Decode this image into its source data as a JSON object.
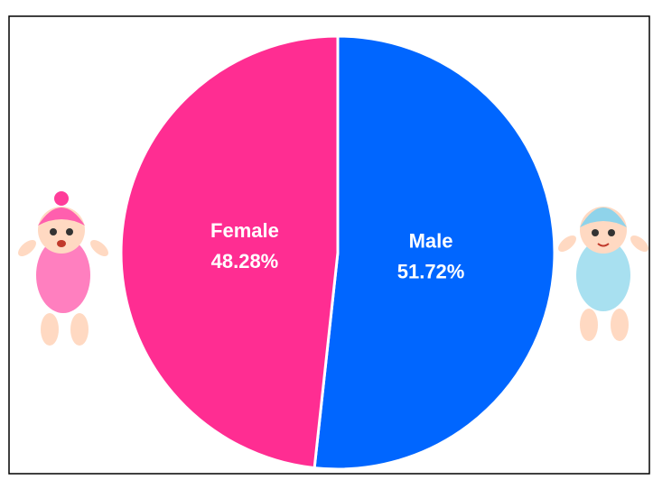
{
  "chart_data": {
    "type": "pie",
    "categories": [
      "Male",
      "Female"
    ],
    "values": [
      51.72,
      48.28
    ],
    "value_labels": [
      "51.72%",
      "48.28%"
    ],
    "colors": [
      "#0066ff",
      "#ff2d92"
    ]
  }
}
